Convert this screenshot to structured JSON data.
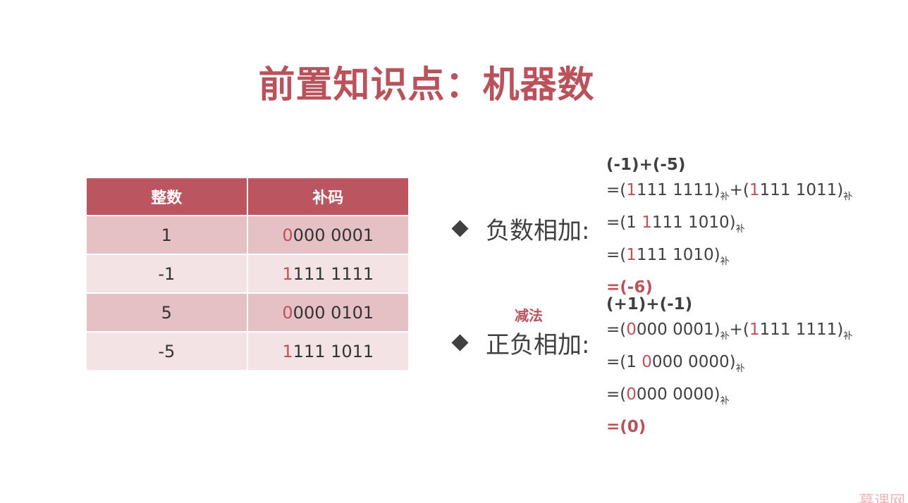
{
  "title": "前置知识点：机器数",
  "table": {
    "headers": [
      "整数",
      "补码"
    ],
    "rows": [
      {
        "int": "1",
        "sign": "0",
        "rest": "000 0001"
      },
      {
        "int": "-1",
        "sign": "1",
        "rest": "111 1111"
      },
      {
        "int": "5",
        "sign": "0",
        "rest": "000 0101"
      },
      {
        "int": "-5",
        "sign": "1",
        "rest": "111 1011"
      }
    ]
  },
  "bullets": {
    "neg_add": "负数相加:",
    "pos_neg_add": "正负相加:",
    "subtraction_note": "减法"
  },
  "calc1": [
    [
      {
        "t": "(-1)+(-5)",
        "c": "bold"
      }
    ],
    [
      {
        "t": "=("
      },
      {
        "t": "1",
        "c": "red"
      },
      {
        "t": "111 1111)"
      },
      {
        "t": "补",
        "c": "sub"
      },
      {
        "t": "+("
      },
      {
        "t": "1",
        "c": "red"
      },
      {
        "t": "111 1011)"
      },
      {
        "t": "补",
        "c": "sub"
      }
    ],
    [
      {
        "t": "=(1 "
      },
      {
        "t": "1",
        "c": "red"
      },
      {
        "t": "111 1010)"
      },
      {
        "t": "补",
        "c": "sub"
      }
    ],
    [
      {
        "t": "=("
      },
      {
        "t": "1",
        "c": "red"
      },
      {
        "t": "111 1010)"
      },
      {
        "t": "补",
        "c": "sub"
      }
    ],
    [
      {
        "t": "=(-6)",
        "c": "result"
      }
    ]
  ],
  "calc2": [
    [
      {
        "t": "(+1)+(-1)",
        "c": "bold"
      }
    ],
    [
      {
        "t": "=("
      },
      {
        "t": "0",
        "c": "red"
      },
      {
        "t": "000 0001)"
      },
      {
        "t": "补",
        "c": "sub"
      },
      {
        "t": "+("
      },
      {
        "t": "1",
        "c": "red"
      },
      {
        "t": "111 1111)"
      },
      {
        "t": "补",
        "c": "sub"
      }
    ],
    [
      {
        "t": "=(1 "
      },
      {
        "t": "0",
        "c": "red"
      },
      {
        "t": "000 0000)"
      },
      {
        "t": "补",
        "c": "sub"
      }
    ],
    [
      {
        "t": "=("
      },
      {
        "t": "0",
        "c": "red"
      },
      {
        "t": "000 0000)"
      },
      {
        "t": "补",
        "c": "sub"
      }
    ],
    [
      {
        "t": "=(0)",
        "c": "result"
      }
    ]
  ],
  "watermark": "慕课网",
  "colors": {
    "accent": "#b9525a",
    "header_bg": "#bb5660",
    "row_odd": "#e5c0c4",
    "row_even": "#f3e3e4"
  }
}
